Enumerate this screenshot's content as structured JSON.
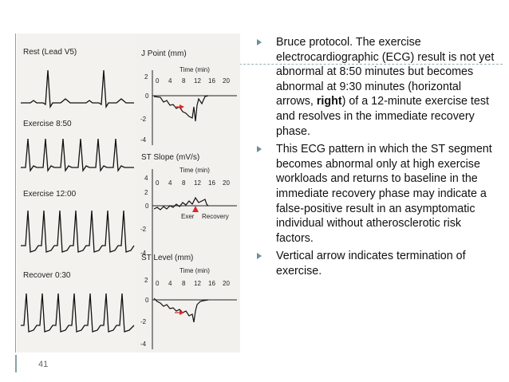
{
  "slide": {
    "page_number": "41"
  },
  "figure": {
    "ecg_strips": [
      {
        "label": "Rest (Lead V5)"
      },
      {
        "label": "Exercise 8:50"
      },
      {
        "label": "Exercise 12:00"
      },
      {
        "label": "Recover 0:30"
      }
    ],
    "plots": [
      {
        "title": "J Point (mm)",
        "time_label": "Time (min)",
        "x_ticks": [
          "0",
          "4",
          "8",
          "12",
          "16",
          "20"
        ],
        "y_ticks": [
          "2",
          "0",
          "-2",
          "-4"
        ]
      },
      {
        "title": "ST Slope (mV/s)",
        "time_label": "Time (min)",
        "x_ticks": [
          "0",
          "4",
          "8",
          "12",
          "16",
          "20"
        ],
        "y_ticks": [
          "4",
          "2",
          "0",
          "-2",
          "-4"
        ],
        "phase_labels": [
          "Exer",
          "Recovery"
        ]
      },
      {
        "title": "ST Level (mm)",
        "time_label": "Time (min)",
        "x_ticks": [
          "0",
          "4",
          "8",
          "12",
          "16",
          "20"
        ],
        "y_ticks": [
          "2",
          "0",
          "-2",
          "-4"
        ]
      }
    ],
    "colors": {
      "arrow": "#e0242c",
      "trace": "#111111",
      "panel": "#f2f1ee"
    }
  },
  "bullets": [
    {
      "text_before": "Bruce protocol. The exercise electrocardiographic (ECG) result is not yet abnormal at 8:50 minutes but becomes abnormal at 9:30 minutes (horizontal arrows, ",
      "bold": "right",
      "text_after": ") of a 12-minute exercise test and resolves in the immediate recovery phase."
    },
    {
      "text": "This ECG pattern in which the ST segment becomes abnormal only at high exercise workloads and returns to baseline in the immediate recovery phase may indicate a false-positive result in an asymptomatic individual without atherosclerotic risk factors."
    },
    {
      "text": " Vertical arrow indicates termination of exercise."
    }
  ],
  "colors": {
    "bullet_marker": "#6b8e9a",
    "rule": "#9bb0b6"
  }
}
